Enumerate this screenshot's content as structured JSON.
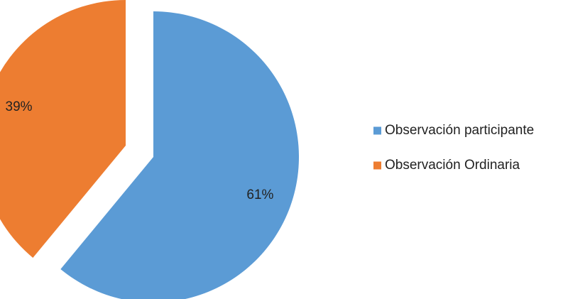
{
  "chart_data": {
    "type": "pie",
    "exploded": true,
    "categories": [
      "Observación participante",
      "Observación Ordinaria"
    ],
    "values": [
      61,
      39
    ],
    "data_labels": [
      "61%",
      "39%"
    ],
    "colors": [
      "#5B9BD5",
      "#ED7D31"
    ],
    "legend_position": "right",
    "title": ""
  }
}
